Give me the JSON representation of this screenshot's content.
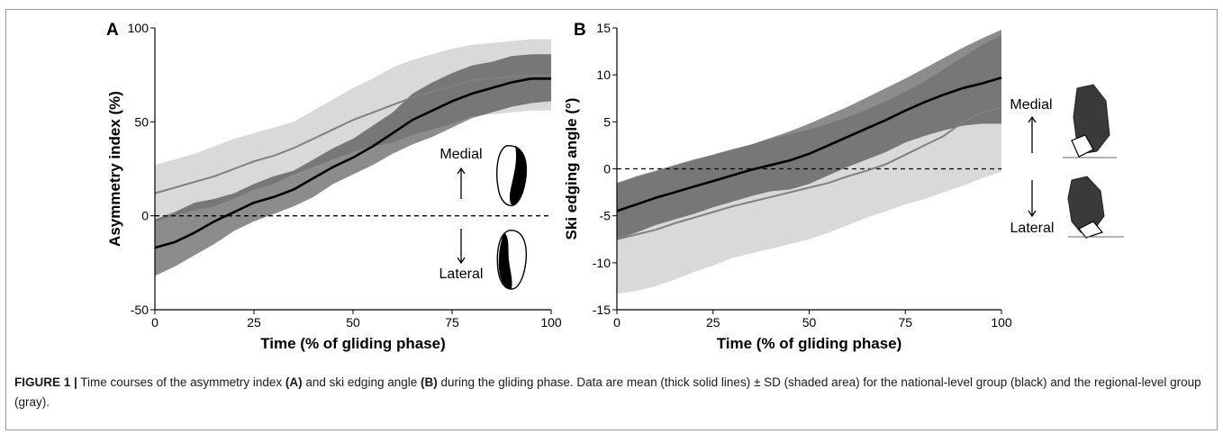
{
  "chart_data": [
    {
      "type": "area",
      "panel_label": "A",
      "xlabel": "Time (% of gliding phase)",
      "ylabel": "Asymmetry index (%)",
      "xlim": [
        0,
        100
      ],
      "ylim": [
        -50,
        100
      ],
      "xticks": [
        "0",
        "25",
        "50",
        "75",
        "100"
      ],
      "yticks": [
        "-50",
        "0",
        "50",
        "100"
      ],
      "reference_line": 0,
      "annotations": {
        "up": "Medial",
        "down": "Lateral"
      },
      "x": [
        0,
        5,
        10,
        15,
        20,
        25,
        30,
        35,
        40,
        45,
        50,
        55,
        60,
        65,
        70,
        75,
        80,
        85,
        90,
        95,
        100
      ],
      "series": [
        {
          "group": "regional",
          "color": "#808080",
          "band_color": "#d9d9d9",
          "mean": [
            12,
            15,
            18,
            21,
            25,
            29,
            32,
            36,
            41,
            46,
            51,
            55,
            59,
            63,
            66,
            69,
            72,
            73,
            74,
            75,
            75
          ],
          "upper": [
            27,
            30,
            33,
            37,
            41,
            44,
            47,
            50,
            56,
            62,
            68,
            73,
            79,
            83,
            86,
            89,
            91,
            92,
            93,
            94,
            94
          ],
          "lower": [
            -3,
            0,
            3,
            5,
            9,
            14,
            17,
            22,
            26,
            30,
            34,
            37,
            39,
            43,
            46,
            49,
            53,
            54,
            55,
            56,
            56
          ]
        },
        {
          "group": "national",
          "color": "#000000",
          "band_color": "#8c8c8c",
          "mean": [
            -17,
            -14,
            -9,
            -3,
            2,
            7,
            10,
            14,
            20,
            26,
            31,
            37,
            44,
            51,
            56,
            61,
            65,
            68,
            71,
            73,
            73
          ],
          "upper": [
            -2,
            2,
            7,
            9,
            12,
            17,
            21,
            24,
            30,
            36,
            41,
            48,
            55,
            65,
            71,
            76,
            80,
            82,
            85,
            86,
            86
          ],
          "lower": [
            -32,
            -27,
            -21,
            -15,
            -8,
            -3,
            1,
            5,
            10,
            17,
            22,
            27,
            33,
            38,
            42,
            47,
            52,
            55,
            58,
            60,
            61
          ]
        }
      ]
    },
    {
      "type": "area",
      "panel_label": "B",
      "xlabel": "Time (% of gliding phase)",
      "ylabel": "Ski edging angle (°)",
      "xlim": [
        0,
        100
      ],
      "ylim": [
        -15,
        15
      ],
      "xticks": [
        "0",
        "25",
        "50",
        "75",
        "100"
      ],
      "yticks": [
        "-15",
        "-10",
        "-5",
        "0",
        "5",
        "10",
        "15"
      ],
      "reference_line": 0,
      "annotations": {
        "up": "Medial",
        "down": "Lateral"
      },
      "x": [
        0,
        5,
        10,
        15,
        20,
        25,
        30,
        35,
        40,
        45,
        50,
        55,
        60,
        65,
        70,
        75,
        80,
        85,
        90,
        95,
        100
      ],
      "series": [
        {
          "group": "regional",
          "color": "#808080",
          "band_color": "#d9d9d9",
          "mean": [
            -7.5,
            -7,
            -6.5,
            -5.8,
            -5.2,
            -4.6,
            -4,
            -3.5,
            -3,
            -2.5,
            -2,
            -1.5,
            -0.8,
            -0.2,
            0.5,
            1.5,
            2.5,
            3.5,
            5,
            6,
            6.5
          ],
          "upper": [
            -1.5,
            -0.9,
            -0.3,
            0.3,
            0.9,
            1.5,
            2,
            2.6,
            3.2,
            3.7,
            4.2,
            4.8,
            5.5,
            6.3,
            7.2,
            8.2,
            9.3,
            10.6,
            11.9,
            13.2,
            14.2
          ],
          "lower": [
            -13.3,
            -13,
            -12.5,
            -11.8,
            -11,
            -10.3,
            -9.5,
            -9,
            -8.5,
            -8,
            -7.5,
            -6.8,
            -6,
            -5.2,
            -4.5,
            -3.8,
            -3.2,
            -2.5,
            -1.8,
            -1,
            -0.3
          ]
        },
        {
          "group": "national",
          "color": "#000000",
          "band_color": "#8c8c8c",
          "mean": [
            -4.5,
            -3.8,
            -3.1,
            -2.5,
            -1.9,
            -1.3,
            -0.7,
            -0.1,
            0.4,
            0.9,
            1.6,
            2.5,
            3.4,
            4.3,
            5.2,
            6.2,
            7.1,
            7.9,
            8.6,
            9.1,
            9.7
          ],
          "upper": [
            -1.5,
            -0.8,
            -0.2,
            0.4,
            1,
            1.5,
            2.1,
            2.6,
            3.3,
            4,
            4.8,
            5.7,
            6.6,
            7.6,
            8.6,
            9.6,
            10.7,
            11.8,
            12.9,
            13.9,
            14.8
          ],
          "lower": [
            -7.5,
            -6.8,
            -6,
            -5.4,
            -4.8,
            -4.1,
            -3.5,
            -2.9,
            -2.4,
            -2.2,
            -1.6,
            -0.7,
            0.2,
            1,
            1.8,
            2.8,
            3.5,
            4.1,
            4.6,
            4.8,
            4.8
          ]
        }
      ]
    }
  ],
  "caption": {
    "label": "FIGURE 1 |",
    "part1": " Time courses of the asymmetry index ",
    "ref_a": "(A)",
    "part2": " and ski edging angle ",
    "ref_b": "(B)",
    "part3": " during the gliding phase. Data are mean (thick solid lines) ± SD (shaded area) for the national-level group (black) and the regional-level group (gray)."
  }
}
